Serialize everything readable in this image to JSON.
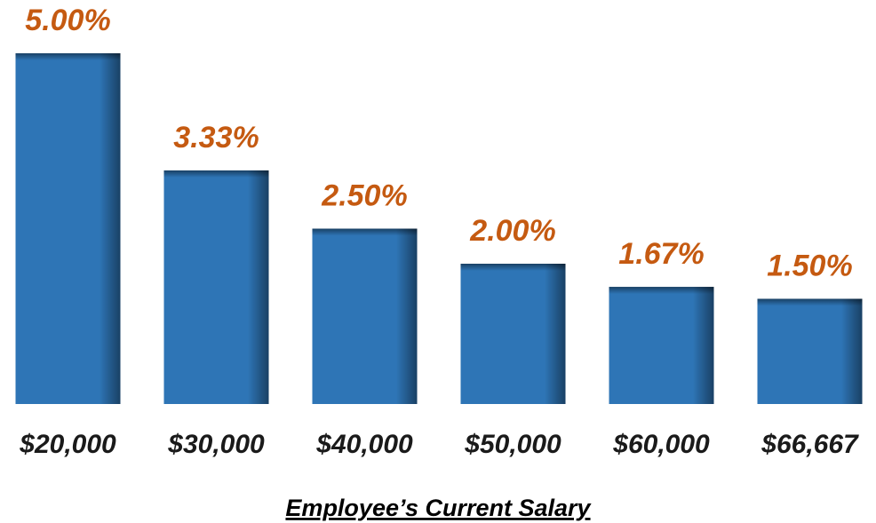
{
  "chart_data": {
    "type": "bar",
    "x_label": "Employee’s Current Salary",
    "categories": [
      "$20,000",
      "$30,000",
      "$40,000",
      "$50,000",
      "$60,000",
      "$66,667"
    ],
    "values": [
      5.0,
      3.33,
      2.5,
      2.0,
      1.67,
      1.5
    ],
    "value_labels": [
      "5.00%",
      "3.33%",
      "2.50%",
      "2.00%",
      "1.67%",
      "1.50%"
    ],
    "color": "#2e75b6"
  }
}
